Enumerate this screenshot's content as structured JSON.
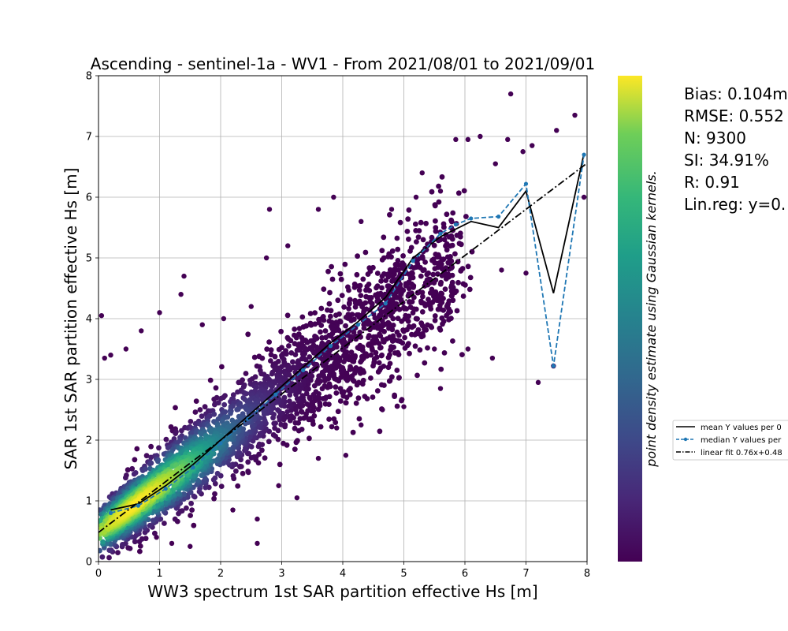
{
  "chart_data": {
    "type": "scatter",
    "title": "Ascending - sentinel-1a - WV1 - From 2021/08/01 to 2021/09/01",
    "xlabel": "WW3 spectrum 1st SAR partition effective Hs [m]",
    "ylabel": "SAR 1st SAR partition effective Hs [m]",
    "xlim": [
      0,
      8
    ],
    "ylim": [
      0,
      8
    ],
    "xticks": [
      "0",
      "1",
      "2",
      "3",
      "4",
      "5",
      "6",
      "7",
      "8"
    ],
    "yticks": [
      "0",
      "1",
      "2",
      "3",
      "4",
      "5",
      "6",
      "7",
      "8"
    ],
    "grid": true,
    "colormap": "viridis",
    "colorbar_label": "point density estimate using Gaussian kernels.",
    "stats": [
      "Bias: 0.104m",
      "RMSE: 0.552",
      "N: 9300",
      "SI: 34.91%",
      "R: 0.91",
      "Lin.reg: y=0."
    ],
    "legend": {
      "placement": "right, outside axes",
      "entries": [
        "mean Y values per 0",
        "median Y values per",
        "linear fit 0.76x+0.48"
      ]
    },
    "series": [
      {
        "name": "mean Y values per 0",
        "color": "#000000",
        "style": "solid",
        "x": [
          0.2,
          0.65,
          1.1,
          1.55,
          2.0,
          2.45,
          2.9,
          3.35,
          3.8,
          4.25,
          4.7,
          5.15,
          5.6,
          6.1,
          6.55,
          7.0,
          7.45,
          7.95
        ],
        "y": [
          0.85,
          0.95,
          1.25,
          1.6,
          2.0,
          2.4,
          2.8,
          3.2,
          3.6,
          3.95,
          4.35,
          5.0,
          5.35,
          5.6,
          5.5,
          6.1,
          4.42,
          6.72
        ]
      },
      {
        "name": "median Y values per",
        "color": "#1f77b4",
        "style": "dashed-markers",
        "x": [
          0.2,
          0.65,
          1.1,
          1.55,
          2.0,
          2.45,
          2.9,
          3.35,
          3.8,
          4.25,
          4.7,
          5.15,
          5.6,
          5.85,
          6.1,
          6.55,
          7.0,
          7.45,
          7.95
        ],
        "y": [
          0.8,
          0.92,
          1.2,
          1.55,
          1.95,
          2.35,
          2.75,
          3.15,
          3.55,
          3.9,
          4.25,
          4.95,
          5.4,
          5.55,
          5.65,
          5.68,
          6.22,
          3.22,
          6.7
        ]
      },
      {
        "name": "linear fit 0.76x+0.48",
        "color": "#000000",
        "style": "dashdot",
        "slope": 0.76,
        "intercept": 0.48,
        "x": [
          0,
          8
        ],
        "y": [
          0.48,
          6.56
        ]
      }
    ],
    "scatter": {
      "n_points": 9300,
      "outliers": [
        [
          0.05,
          4.05
        ],
        [
          0.1,
          3.35
        ],
        [
          0.2,
          3.4
        ],
        [
          0.45,
          3.5
        ],
        [
          0.7,
          3.8
        ],
        [
          1.0,
          4.1
        ],
        [
          1.35,
          4.4
        ],
        [
          1.4,
          4.7
        ],
        [
          1.7,
          3.9
        ],
        [
          2.05,
          4.0
        ],
        [
          2.5,
          4.2
        ],
        [
          2.75,
          5.0
        ],
        [
          2.8,
          5.8
        ],
        [
          3.1,
          5.2
        ],
        [
          3.6,
          5.8
        ],
        [
          3.85,
          6.0
        ],
        [
          4.3,
          5.6
        ],
        [
          4.8,
          5.8
        ],
        [
          5.2,
          6.0
        ],
        [
          5.3,
          6.4
        ],
        [
          5.6,
          6.1
        ],
        [
          5.85,
          6.95
        ],
        [
          6.05,
          6.95
        ],
        [
          6.25,
          7.0
        ],
        [
          6.5,
          6.55
        ],
        [
          6.7,
          6.95
        ],
        [
          6.75,
          7.7
        ],
        [
          6.95,
          6.75
        ],
        [
          7.1,
          6.85
        ],
        [
          7.5,
          7.1
        ],
        [
          7.8,
          7.35
        ],
        [
          7.95,
          6.0
        ],
        [
          7.45,
          3.22
        ],
        [
          7.2,
          2.95
        ],
        [
          7.0,
          4.75
        ],
        [
          6.6,
          4.8
        ],
        [
          6.45,
          3.35
        ],
        [
          6.05,
          3.5
        ],
        [
          5.6,
          2.85
        ],
        [
          5.5,
          3.5
        ],
        [
          5.0,
          2.55
        ],
        [
          4.65,
          2.5
        ],
        [
          4.3,
          2.25
        ],
        [
          4.05,
          1.75
        ],
        [
          3.9,
          2.2
        ],
        [
          3.6,
          1.7
        ],
        [
          3.25,
          1.05
        ],
        [
          2.95,
          1.25
        ],
        [
          2.6,
          0.7
        ],
        [
          2.6,
          0.3
        ],
        [
          2.2,
          0.85
        ],
        [
          1.5,
          0.25
        ],
        [
          1.2,
          0.3
        ],
        [
          0.95,
          0.4
        ]
      ]
    }
  }
}
